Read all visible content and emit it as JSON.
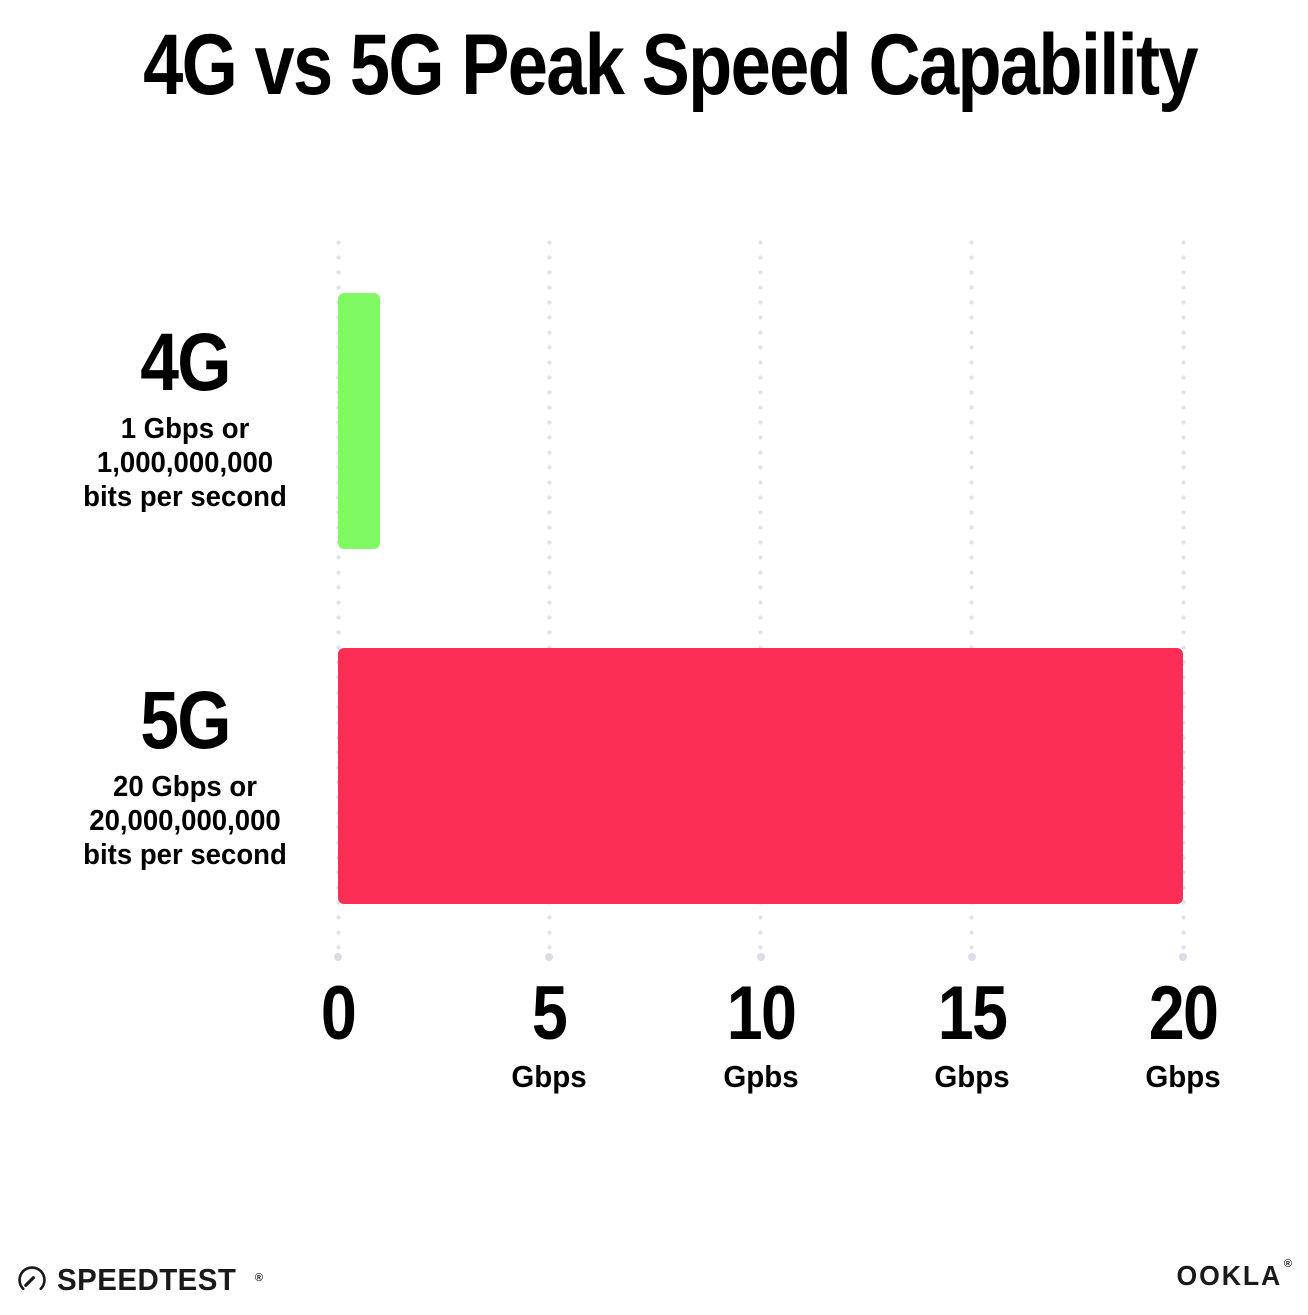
{
  "title": "4G vs 5G Peak Speed Capability",
  "chart_data": {
    "type": "bar",
    "orientation": "horizontal",
    "title": "4G vs 5G Peak Speed Capability",
    "xlabel": "",
    "ylabel": "",
    "xlim": [
      0,
      20
    ],
    "grid": "vertical-dotted",
    "legend": "none",
    "categories": [
      "4G",
      "5G"
    ],
    "values": [
      1,
      20
    ],
    "bars": [
      {
        "category": "4G",
        "value_gbps": 1,
        "color": "#7FFA63",
        "label": "4G",
        "sublabel_lines": [
          "1 Gbps or",
          "1,000,000,000",
          "bits per second"
        ]
      },
      {
        "category": "5G",
        "value_gbps": 20,
        "color": "#FC2E56",
        "label": "5G",
        "sublabel_lines": [
          "20 Gbps or",
          "20,000,000,000",
          "bits per second"
        ]
      }
    ],
    "x_ticks": [
      {
        "value": 0,
        "label": "0",
        "unit": ""
      },
      {
        "value": 5,
        "label": "5",
        "unit": "Gbps"
      },
      {
        "value": 10,
        "label": "10",
        "unit": "Gpbs"
      },
      {
        "value": 15,
        "label": "15",
        "unit": "Gbps"
      },
      {
        "value": 20,
        "label": "20",
        "unit": "Gbps"
      }
    ]
  },
  "footer": {
    "speedtest_label": "SPEEDTEST",
    "speedtest_mark": "®",
    "ookla_label": "OOKLA",
    "ookla_mark": "®"
  },
  "colors": {
    "background": "#FFFFFF",
    "text": "#000000",
    "gridline_dot": "#E2E2EC",
    "gridline_end_dot": "#DCDCE8",
    "bar_4g": "#7FFA63",
    "bar_5g": "#FC2E56",
    "logo": "#1A1A1A"
  }
}
